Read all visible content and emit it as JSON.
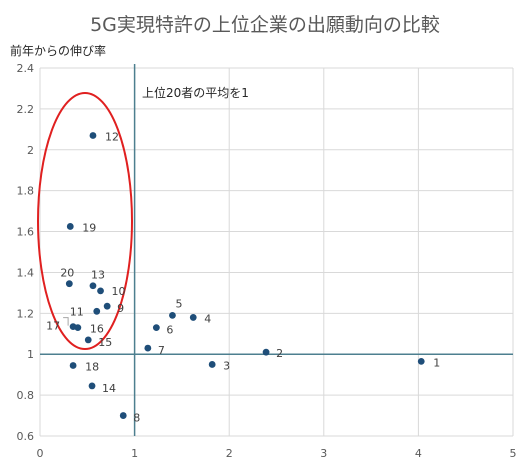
{
  "chart_data": {
    "type": "scatter",
    "title": "5G実現特許の上位企業の出願動向の比較",
    "xlabel": "",
    "ylabel": "前年からの伸び率",
    "xlim": [
      0,
      5
    ],
    "ylim": [
      0.6,
      2.4
    ],
    "x_ticks": [
      "0",
      "1",
      "2",
      "3",
      "4",
      "5"
    ],
    "y_ticks": [
      "0.6",
      "0.8",
      "1",
      "1.2",
      "1.4",
      "1.6",
      "1.8",
      "2",
      "2.2",
      "2.4"
    ],
    "grid": true,
    "legend": "none",
    "reference_lines": {
      "x": 1,
      "y": 1,
      "label": "上位20者の平均を1"
    },
    "highlight": "ellipse around points 12, 19, 20, 13, 10, 11, 9, 17, 16, 15",
    "points": [
      {
        "label": "1",
        "x": 4.03,
        "y": 0.965
      },
      {
        "label": "2",
        "x": 2.39,
        "y": 1.01
      },
      {
        "label": "3",
        "x": 1.82,
        "y": 0.95
      },
      {
        "label": "4",
        "x": 1.62,
        "y": 1.18
      },
      {
        "label": "5",
        "x": 1.4,
        "y": 1.19
      },
      {
        "label": "6",
        "x": 1.23,
        "y": 1.13
      },
      {
        "label": "7",
        "x": 1.14,
        "y": 1.03
      },
      {
        "label": "8",
        "x": 0.88,
        "y": 0.7
      },
      {
        "label": "9",
        "x": 0.71,
        "y": 1.235
      },
      {
        "label": "10",
        "x": 0.64,
        "y": 1.31
      },
      {
        "label": "11",
        "x": 0.6,
        "y": 1.21
      },
      {
        "label": "12",
        "x": 0.56,
        "y": 2.07
      },
      {
        "label": "13",
        "x": 0.56,
        "y": 1.335
      },
      {
        "label": "14",
        "x": 0.55,
        "y": 0.845
      },
      {
        "label": "15",
        "x": 0.51,
        "y": 1.07
      },
      {
        "label": "16",
        "x": 0.4,
        "y": 1.13
      },
      {
        "label": "17",
        "x": 0.35,
        "y": 1.135
      },
      {
        "label": "18",
        "x": 0.35,
        "y": 0.945
      },
      {
        "label": "19",
        "x": 0.32,
        "y": 1.625
      },
      {
        "label": "20",
        "x": 0.31,
        "y": 1.345
      }
    ],
    "colors": {
      "point": "#1f4e79",
      "reference_line": "#4d7f8f",
      "highlight": "#e02020",
      "grid": "#d9d9d9"
    }
  }
}
